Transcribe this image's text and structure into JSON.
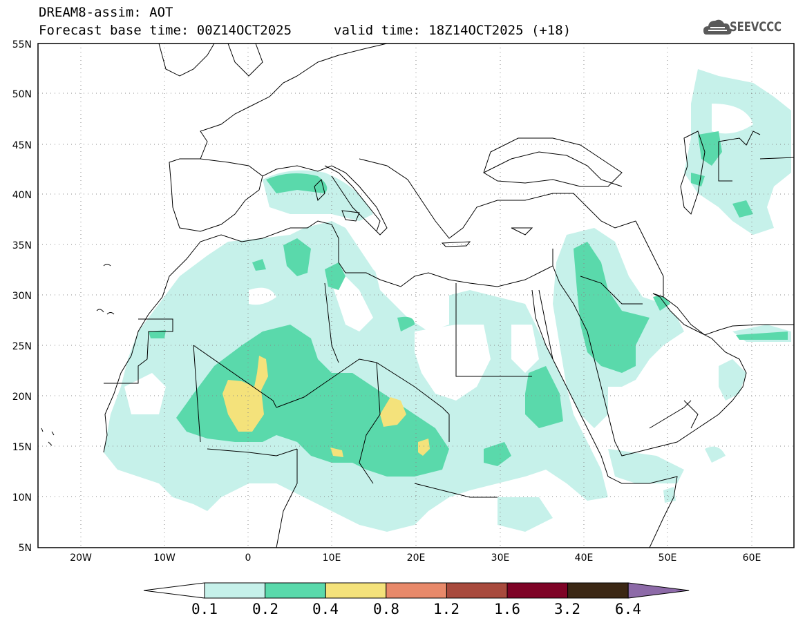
{
  "header": {
    "title": "DREAM8-assim: AOT",
    "base_time": "Forecast base time: 00Z14OCT2025",
    "valid_time": "valid time: 18Z14OCT2025 (+18)",
    "logo_text": "SEEVCCC"
  },
  "map": {
    "lon_range": [
      -25,
      65
    ],
    "lat_range": [
      5,
      55
    ],
    "lat_labels": [
      "5N",
      "10N",
      "15N",
      "20N",
      "25N",
      "30N",
      "35N",
      "40N",
      "45N",
      "50N",
      "55N"
    ],
    "lat_values": [
      5,
      10,
      15,
      20,
      25,
      30,
      35,
      40,
      45,
      50,
      55
    ],
    "lon_labels": [
      "20W",
      "10W",
      "0",
      "10E",
      "20E",
      "30E",
      "40E",
      "50E",
      "60E"
    ],
    "lon_values": [
      -20,
      -10,
      0,
      10,
      20,
      30,
      40,
      50,
      60
    ],
    "gridlines": "dotted",
    "fill_colors": {
      "level_0.1": "#c6f1ea",
      "level_0.2": "#5ad9ab",
      "level_0.4": "#f4e27b"
    }
  },
  "colorbar": {
    "labels": [
      "0.1",
      "0.2",
      "0.4",
      "0.8",
      "1.2",
      "1.6",
      "3.2",
      "6.4"
    ],
    "colors": [
      "#ffffff",
      "#c6f1ea",
      "#5ad9ab",
      "#f4e27b",
      "#e8896a",
      "#a84a3d",
      "#7e0326",
      "#3b2714",
      "#8d6aa8"
    ]
  }
}
